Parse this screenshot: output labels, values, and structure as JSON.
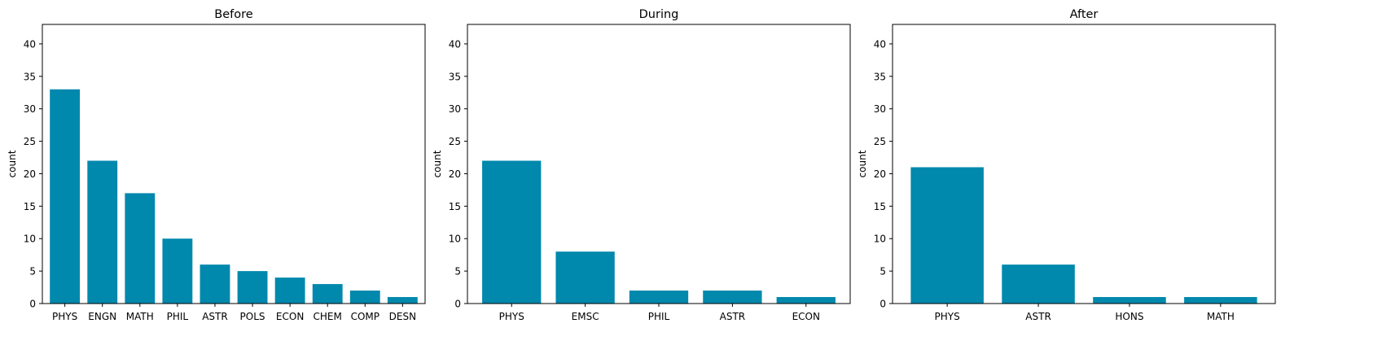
{
  "figure": {
    "bar_color": "#0088ad"
  },
  "chart_data": [
    {
      "type": "bar",
      "title": "Before",
      "xlabel": "",
      "ylabel": "count",
      "ylim": [
        0,
        43
      ],
      "yticks": [
        0,
        5,
        10,
        15,
        20,
        25,
        30,
        35,
        40
      ],
      "categories": [
        "PHYS",
        "ENGN",
        "MATH",
        "PHIL",
        "ASTR",
        "POLS",
        "ECON",
        "CHEM",
        "COMP",
        "DESN"
      ],
      "values": [
        33,
        22,
        17,
        10,
        6,
        5,
        4,
        3,
        2,
        1
      ],
      "grid": false
    },
    {
      "type": "bar",
      "title": "During",
      "xlabel": "",
      "ylabel": "count",
      "ylim": [
        0,
        43
      ],
      "yticks": [
        0,
        5,
        10,
        15,
        20,
        25,
        30,
        35,
        40
      ],
      "categories": [
        "PHYS",
        "EMSC",
        "PHIL",
        "ASTR",
        "ECON"
      ],
      "values": [
        22,
        8,
        2,
        2,
        1
      ],
      "grid": false
    },
    {
      "type": "bar",
      "title": "After",
      "xlabel": "",
      "ylabel": "count",
      "ylim": [
        0,
        43
      ],
      "yticks": [
        0,
        5,
        10,
        15,
        20,
        25,
        30,
        35,
        40
      ],
      "categories": [
        "PHYS",
        "ASTR",
        "HONS",
        "MATH"
      ],
      "values": [
        21,
        6,
        1,
        1
      ],
      "grid": false
    }
  ]
}
